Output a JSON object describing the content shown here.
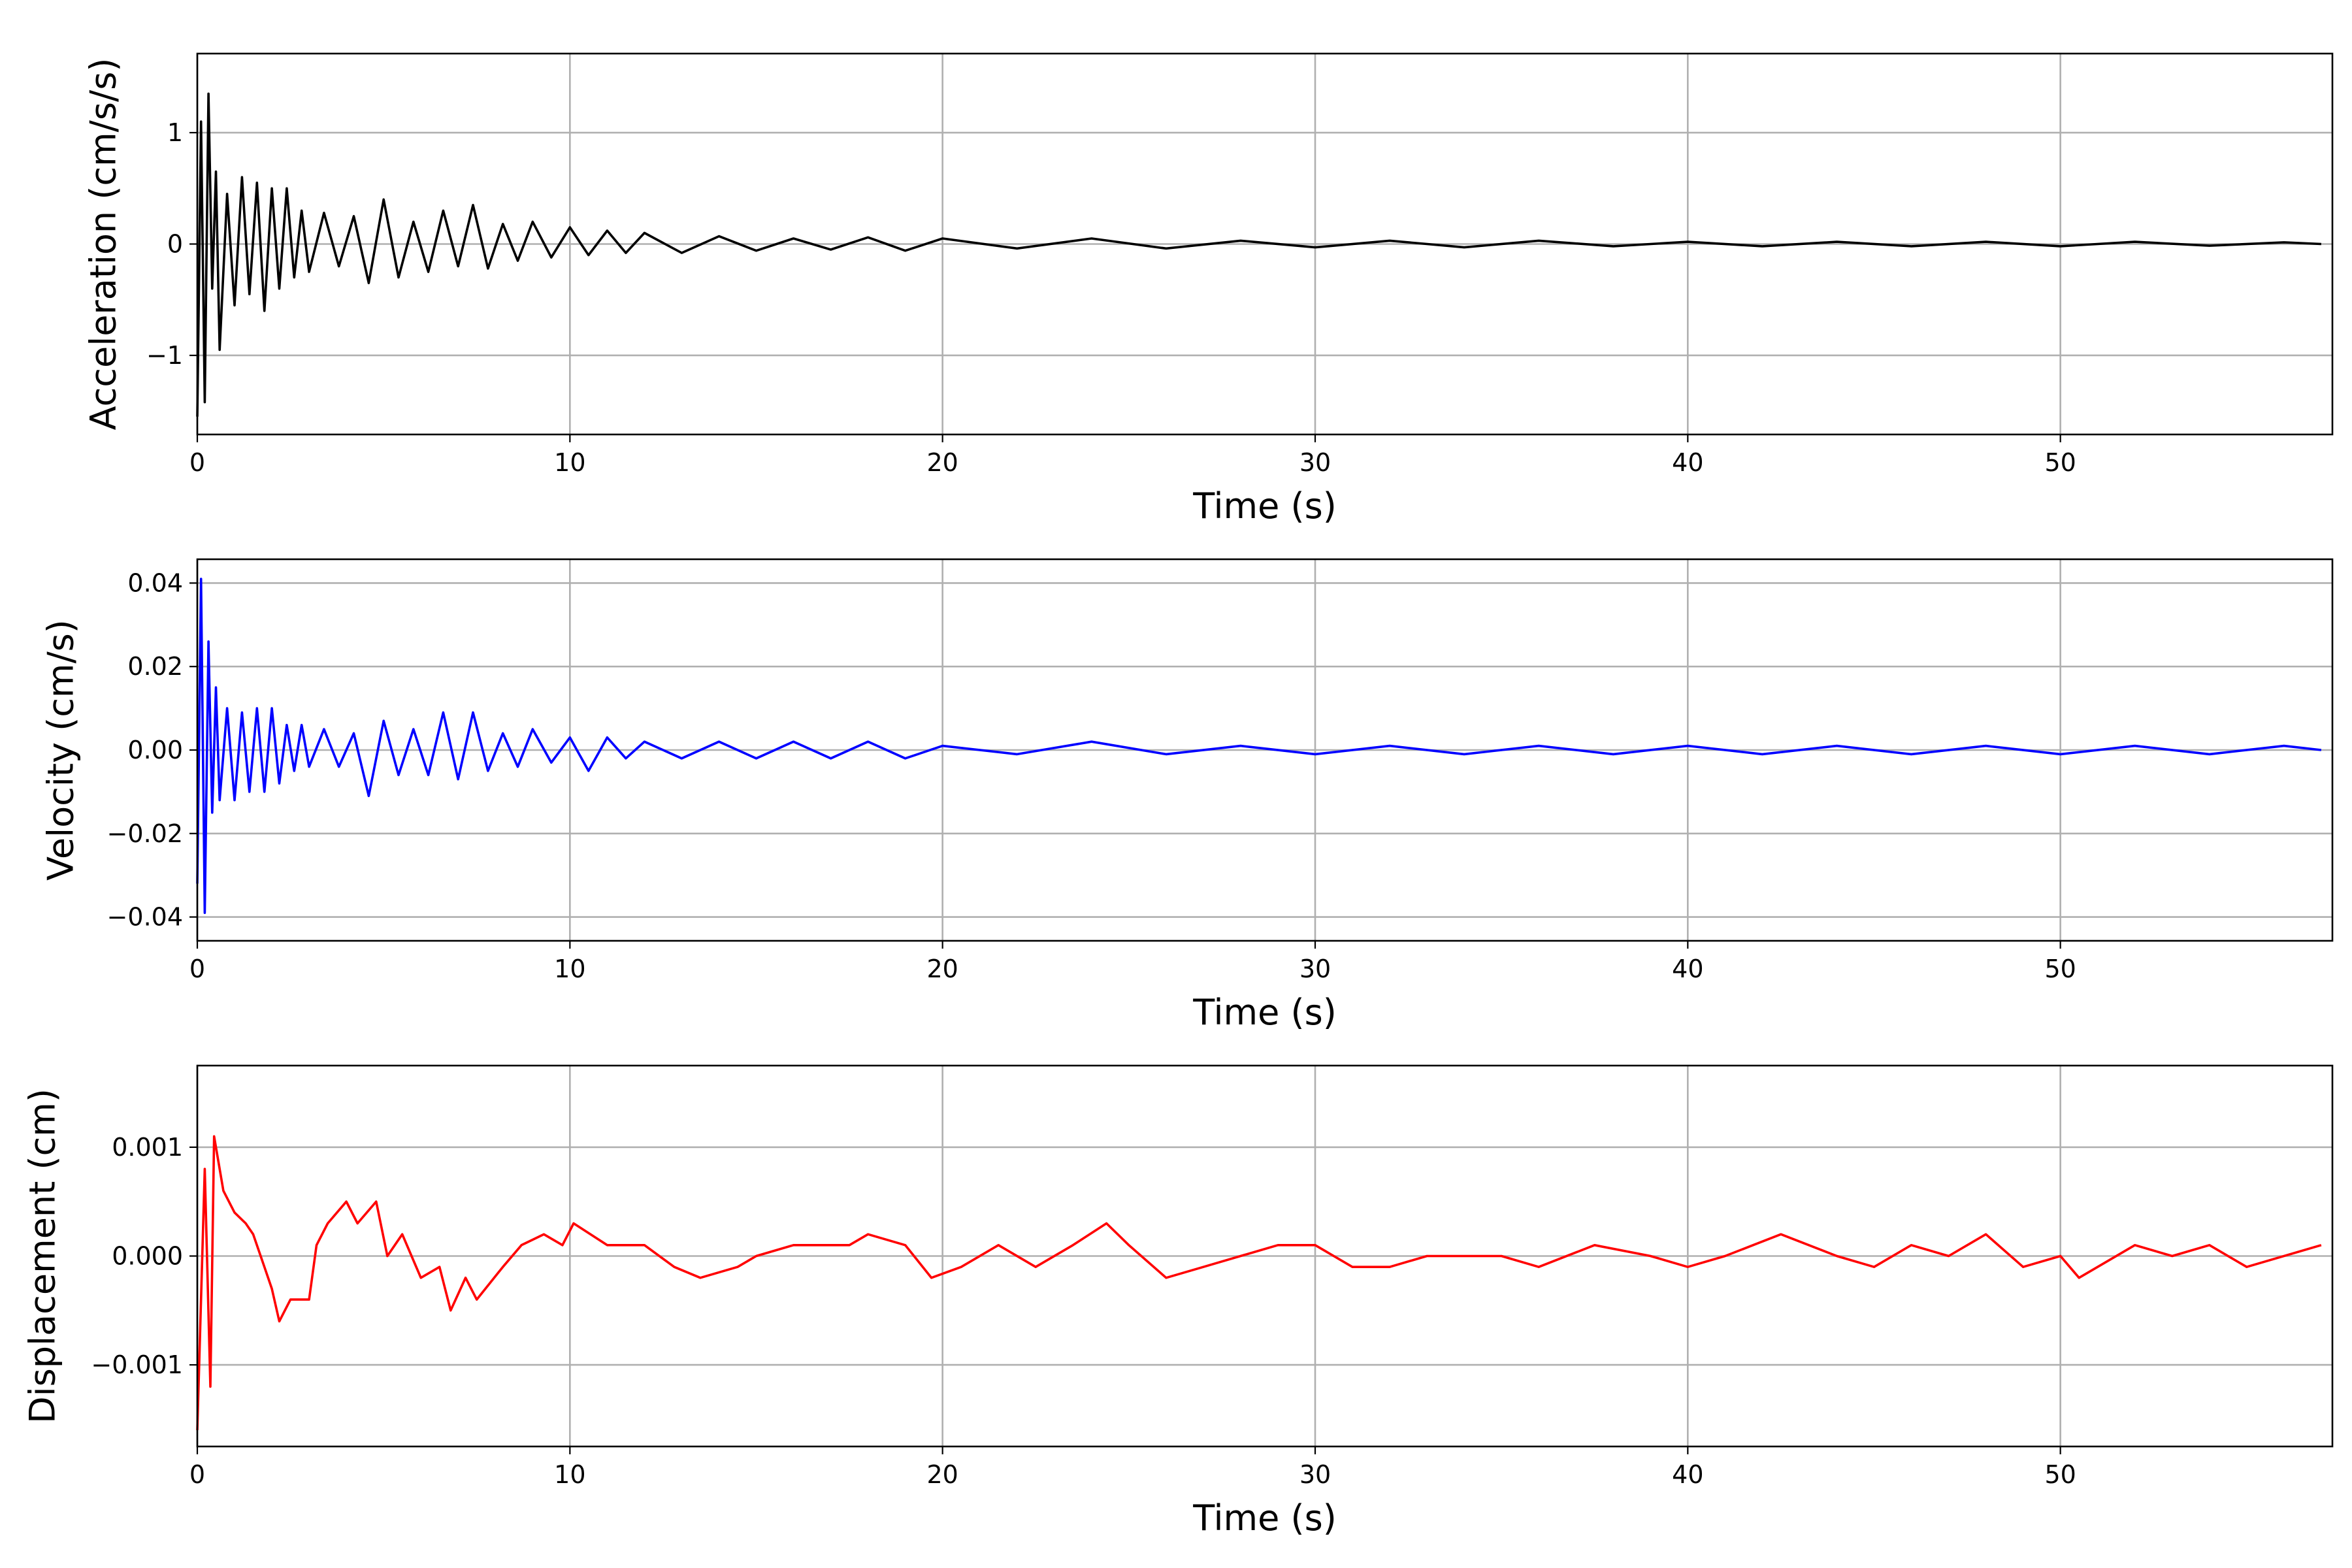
{
  "chart_data": [
    {
      "type": "line",
      "title": "",
      "xlabel": "Time (s)",
      "ylabel": "Acceleration (cm/s/s)",
      "xlim": [
        0,
        57.3
      ],
      "ylim": [
        -1.71,
        1.71
      ],
      "xticks": [
        0,
        10,
        20,
        30,
        40,
        50
      ],
      "xtick_labels": [
        "0",
        "10",
        "20",
        "30",
        "40",
        "50"
      ],
      "yticks": [
        -1,
        0,
        1
      ],
      "ytick_labels": [
        "−1",
        "0",
        "1"
      ],
      "grid": true,
      "color": "#000000",
      "series": [
        {
          "name": "Acceleration",
          "t": [
            0,
            0.1,
            0.2,
            0.3,
            0.4,
            0.5,
            0.6,
            0.8,
            1.0,
            1.2,
            1.4,
            1.6,
            1.8,
            2.0,
            2.2,
            2.4,
            2.6,
            2.8,
            3.0,
            3.4,
            3.8,
            4.2,
            4.6,
            5.0,
            5.4,
            5.8,
            6.2,
            6.6,
            7.0,
            7.4,
            7.8,
            8.2,
            8.6,
            9.0,
            9.5,
            10,
            10.5,
            11,
            11.5,
            12,
            13,
            14,
            15,
            16,
            17,
            18,
            19,
            20,
            22,
            24,
            26,
            28,
            30,
            32,
            34,
            36,
            38,
            40,
            42,
            44,
            46,
            48,
            50,
            52,
            54,
            56,
            57
          ],
          "y": [
            -1.55,
            1.1,
            -1.42,
            1.35,
            -0.4,
            0.65,
            -0.95,
            0.45,
            -0.55,
            0.6,
            -0.45,
            0.55,
            -0.6,
            0.5,
            -0.4,
            0.5,
            -0.3,
            0.3,
            -0.25,
            0.28,
            -0.2,
            0.25,
            -0.35,
            0.4,
            -0.3,
            0.2,
            -0.25,
            0.3,
            -0.2,
            0.35,
            -0.22,
            0.18,
            -0.15,
            0.2,
            -0.12,
            0.15,
            -0.1,
            0.12,
            -0.08,
            0.1,
            -0.08,
            0.07,
            -0.06,
            0.05,
            -0.05,
            0.06,
            -0.06,
            0.05,
            -0.04,
            0.05,
            -0.04,
            0.03,
            -0.03,
            0.03,
            -0.03,
            0.03,
            -0.02,
            0.02,
            -0.02,
            0.02,
            -0.02,
            0.02,
            -0.02,
            0.02,
            -0.015,
            0.015,
            0
          ]
        }
      ]
    },
    {
      "type": "line",
      "title": "",
      "xlabel": "Time (s)",
      "ylabel": "Velocity (cm/s)",
      "xlim": [
        0,
        57.3
      ],
      "ylim": [
        -0.0457,
        0.0457
      ],
      "xticks": [
        0,
        10,
        20,
        30,
        40,
        50
      ],
      "xtick_labels": [
        "0",
        "10",
        "20",
        "30",
        "40",
        "50"
      ],
      "yticks": [
        -0.04,
        -0.02,
        0,
        0.02,
        0.04
      ],
      "ytick_labels": [
        "−0.04",
        "−0.02",
        "0.00",
        "0.02",
        "0.04"
      ],
      "grid": true,
      "color": "#0000ff",
      "series": [
        {
          "name": "Velocity",
          "t": [
            0,
            0.1,
            0.2,
            0.3,
            0.4,
            0.5,
            0.6,
            0.8,
            1.0,
            1.2,
            1.4,
            1.6,
            1.8,
            2.0,
            2.2,
            2.4,
            2.6,
            2.8,
            3.0,
            3.4,
            3.8,
            4.2,
            4.6,
            5.0,
            5.4,
            5.8,
            6.2,
            6.6,
            7.0,
            7.4,
            7.8,
            8.2,
            8.6,
            9.0,
            9.5,
            10,
            10.5,
            11,
            11.5,
            12,
            13,
            14,
            15,
            16,
            17,
            18,
            19,
            20,
            22,
            24,
            26,
            28,
            30,
            32,
            34,
            36,
            38,
            40,
            42,
            44,
            46,
            48,
            50,
            52,
            54,
            56,
            57
          ],
          "y": [
            -0.032,
            0.041,
            -0.039,
            0.026,
            -0.015,
            0.015,
            -0.012,
            0.01,
            -0.012,
            0.009,
            -0.01,
            0.01,
            -0.01,
            0.01,
            -0.008,
            0.006,
            -0.005,
            0.006,
            -0.004,
            0.005,
            -0.004,
            0.004,
            -0.011,
            0.007,
            -0.006,
            0.005,
            -0.006,
            0.009,
            -0.007,
            0.009,
            -0.005,
            0.004,
            -0.004,
            0.005,
            -0.003,
            0.003,
            -0.005,
            0.003,
            -0.002,
            0.002,
            -0.002,
            0.002,
            -0.002,
            0.002,
            -0.002,
            0.002,
            -0.002,
            0.001,
            -0.001,
            0.002,
            -0.001,
            0.001,
            -0.001,
            0.001,
            -0.001,
            0.001,
            -0.001,
            0.001,
            -0.001,
            0.001,
            -0.001,
            0.001,
            -0.001,
            0.001,
            -0.001,
            0.001,
            0
          ]
        }
      ]
    },
    {
      "type": "line",
      "title": "",
      "xlabel": "Time (s)",
      "ylabel": "Displacement (cm)",
      "xlim": [
        0,
        57.3
      ],
      "ylim": [
        -0.00175,
        0.00175
      ],
      "xticks": [
        0,
        10,
        20,
        30,
        40,
        50
      ],
      "xtick_labels": [
        "0",
        "10",
        "20",
        "30",
        "40",
        "50"
      ],
      "yticks": [
        -0.001,
        0,
        0.001
      ],
      "ytick_labels": [
        "−0.001",
        "0.000",
        "0.001"
      ],
      "grid": true,
      "color": "#ff0000",
      "series": [
        {
          "name": "Displacement",
          "t": [
            0,
            0.2,
            0.35,
            0.45,
            0.7,
            1.0,
            1.3,
            1.5,
            1.8,
            2.0,
            2.2,
            2.5,
            3.0,
            3.2,
            3.5,
            4.0,
            4.3,
            4.8,
            5.1,
            5.5,
            6.0,
            6.5,
            6.8,
            7.2,
            7.5,
            8.2,
            8.7,
            9.3,
            9.8,
            10.1,
            11,
            12,
            12.8,
            13.5,
            14.5,
            15,
            16,
            17.5,
            18,
            19,
            19.7,
            20.5,
            21.5,
            22.5,
            23.5,
            24.4,
            25,
            26,
            27,
            29,
            30,
            31,
            32,
            33,
            35,
            36,
            37.5,
            39,
            40,
            41,
            42.5,
            44,
            45,
            46,
            47,
            48,
            49,
            50,
            50.5,
            52,
            53,
            54,
            55,
            57
          ],
          "y": [
            -0.0016,
            0.0008,
            -0.0012,
            0.0011,
            0.0006,
            0.0004,
            0.0003,
            0.0002,
            -0.0001,
            -0.0003,
            -0.0006,
            -0.0004,
            -0.0004,
            0.0001,
            0.0003,
            0.0005,
            0.0003,
            0.0005,
            0.0,
            0.0002,
            -0.0002,
            -0.0001,
            -0.0005,
            -0.0002,
            -0.0004,
            -0.0001,
            0.0001,
            0.0002,
            0.0001,
            0.0003,
            0.0001,
            0.0001,
            -0.0001,
            -0.0002,
            -0.0001,
            0.0,
            0.0001,
            0.0001,
            0.0002,
            0.0001,
            -0.0002,
            -0.0001,
            0.0001,
            -0.0001,
            0.0001,
            0.0003,
            0.0001,
            -0.0002,
            -0.0001,
            0.0001,
            0.0001,
            -0.0001,
            -0.0001,
            0.0,
            0.0,
            -0.0001,
            0.0001,
            0.0,
            -0.0001,
            0.0,
            0.0002,
            0.0,
            -0.0001,
            0.0001,
            0.0,
            0.0002,
            -0.0001,
            0.0,
            -0.0002,
            0.0001,
            0.0,
            0.0001,
            -0.0001,
            0.0001
          ]
        }
      ]
    }
  ]
}
